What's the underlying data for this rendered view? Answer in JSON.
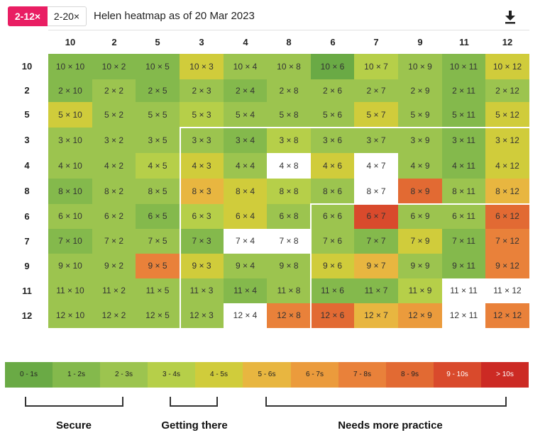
{
  "tabs": [
    {
      "label": "2-12×",
      "active": true
    },
    {
      "label": "2-20×",
      "active": false
    }
  ],
  "title": "Helen heatmap as of 20 Mar 2023",
  "download_icon": "download-icon",
  "colors": {
    "0-1s": "#6aaa45",
    "1-2s": "#84b94c",
    "2-3s": "#9cc44f",
    "3-4s": "#b6cf49",
    "4-5s": "#d0cc3b",
    "5-6s": "#e8b640",
    "6-7s": "#eb9b3c",
    "7-8s": "#e9813a",
    "8-9s": "#e26a33",
    "9-10s": "#d94a2c",
    ">10s": "#cc2a24",
    "untested": "#ffffff",
    "accent": "#e91e63"
  },
  "heatmap": {
    "columns": [
      "10",
      "2",
      "5",
      "3",
      "4",
      "8",
      "6",
      "7",
      "9",
      "11",
      "12"
    ],
    "rows": [
      {
        "label": "10",
        "cells": [
          {
            "text": "10 × 10",
            "band": "1-2s"
          },
          {
            "text": "10 × 2",
            "band": "1-2s"
          },
          {
            "text": "10 × 5",
            "band": "1-2s"
          },
          {
            "text": "10 × 3",
            "band": "4-5s"
          },
          {
            "text": "10 × 4",
            "band": "2-3s"
          },
          {
            "text": "10 × 8",
            "band": "2-3s"
          },
          {
            "text": "10 × 6",
            "band": "0-1s"
          },
          {
            "text": "10 × 7",
            "band": "3-4s"
          },
          {
            "text": "10 × 9",
            "band": "2-3s"
          },
          {
            "text": "10 × 11",
            "band": "1-2s"
          },
          {
            "text": "10 × 12",
            "band": "4-5s"
          }
        ]
      },
      {
        "label": "2",
        "cells": [
          {
            "text": "2 × 10",
            "band": "1-2s"
          },
          {
            "text": "2 × 2",
            "band": "2-3s"
          },
          {
            "text": "2 × 5",
            "band": "1-2s"
          },
          {
            "text": "2 × 3",
            "band": "2-3s"
          },
          {
            "text": "2 × 4",
            "band": "1-2s"
          },
          {
            "text": "2 × 8",
            "band": "2-3s"
          },
          {
            "text": "2 × 6",
            "band": "2-3s"
          },
          {
            "text": "2 × 7",
            "band": "2-3s"
          },
          {
            "text": "2 × 9",
            "band": "2-3s"
          },
          {
            "text": "2 × 11",
            "band": "1-2s"
          },
          {
            "text": "2 × 12",
            "band": "2-3s"
          }
        ]
      },
      {
        "label": "5",
        "cells": [
          {
            "text": "5 × 10",
            "band": "4-5s"
          },
          {
            "text": "5 × 2",
            "band": "2-3s"
          },
          {
            "text": "5 × 5",
            "band": "2-3s"
          },
          {
            "text": "5 × 3",
            "band": "3-4s"
          },
          {
            "text": "5 × 4",
            "band": "2-3s"
          },
          {
            "text": "5 × 8",
            "band": "2-3s"
          },
          {
            "text": "5 × 6",
            "band": "2-3s"
          },
          {
            "text": "5 × 7",
            "band": "4-5s"
          },
          {
            "text": "5 × 9",
            "band": "2-3s"
          },
          {
            "text": "5 × 11",
            "band": "1-2s"
          },
          {
            "text": "5 × 12",
            "band": "4-5s"
          }
        ]
      },
      {
        "label": "3",
        "cells": [
          {
            "text": "3 × 10",
            "band": "2-3s"
          },
          {
            "text": "3 × 2",
            "band": "2-3s"
          },
          {
            "text": "3 × 5",
            "band": "2-3s"
          },
          {
            "text": "3 × 3",
            "band": "2-3s"
          },
          {
            "text": "3 × 4",
            "band": "1-2s"
          },
          {
            "text": "3 × 8",
            "band": "3-4s"
          },
          {
            "text": "3 × 6",
            "band": "2-3s"
          },
          {
            "text": "3 × 7",
            "band": "2-3s"
          },
          {
            "text": "3 × 9",
            "band": "2-3s"
          },
          {
            "text": "3 × 11",
            "band": "1-2s"
          },
          {
            "text": "3 × 12",
            "band": "4-5s"
          }
        ]
      },
      {
        "label": "4",
        "cells": [
          {
            "text": "4 × 10",
            "band": "2-3s"
          },
          {
            "text": "4 × 2",
            "band": "2-3s"
          },
          {
            "text": "4 × 5",
            "band": "3-4s"
          },
          {
            "text": "4 × 3",
            "band": "4-5s"
          },
          {
            "text": "4 × 4",
            "band": "2-3s"
          },
          {
            "text": "4 × 8",
            "band": "untested"
          },
          {
            "text": "4 × 6",
            "band": "4-5s"
          },
          {
            "text": "4 × 7",
            "band": "untested"
          },
          {
            "text": "4 × 9",
            "band": "2-3s"
          },
          {
            "text": "4 × 11",
            "band": "1-2s"
          },
          {
            "text": "4 × 12",
            "band": "4-5s"
          }
        ]
      },
      {
        "label": "8",
        "cells": [
          {
            "text": "8 × 10",
            "band": "1-2s"
          },
          {
            "text": "8 × 2",
            "band": "2-3s"
          },
          {
            "text": "8 × 5",
            "band": "2-3s"
          },
          {
            "text": "8 × 3",
            "band": "5-6s"
          },
          {
            "text": "8 × 4",
            "band": "4-5s"
          },
          {
            "text": "8 × 8",
            "band": "3-4s"
          },
          {
            "text": "8 × 6",
            "band": "2-3s"
          },
          {
            "text": "8 × 7",
            "band": "untested"
          },
          {
            "text": "8 × 9",
            "band": "8-9s"
          },
          {
            "text": "8 × 11",
            "band": "2-3s"
          },
          {
            "text": "8 × 12",
            "band": "5-6s"
          }
        ]
      },
      {
        "label": "6",
        "cells": [
          {
            "text": "6 × 10",
            "band": "2-3s"
          },
          {
            "text": "6 × 2",
            "band": "2-3s"
          },
          {
            "text": "6 × 5",
            "band": "1-2s"
          },
          {
            "text": "6 × 3",
            "band": "3-4s"
          },
          {
            "text": "6 × 4",
            "band": "4-5s"
          },
          {
            "text": "6 × 8",
            "band": "2-3s"
          },
          {
            "text": "6 × 6",
            "band": "2-3s"
          },
          {
            "text": "6 × 7",
            "band": "9-10s"
          },
          {
            "text": "6 × 9",
            "band": "2-3s"
          },
          {
            "text": "6 × 11",
            "band": "2-3s"
          },
          {
            "text": "6 × 12",
            "band": "8-9s"
          }
        ]
      },
      {
        "label": "7",
        "cells": [
          {
            "text": "7 × 10",
            "band": "1-2s"
          },
          {
            "text": "7 × 2",
            "band": "2-3s"
          },
          {
            "text": "7 × 5",
            "band": "2-3s"
          },
          {
            "text": "7 × 3",
            "band": "1-2s"
          },
          {
            "text": "7 × 4",
            "band": "untested"
          },
          {
            "text": "7 × 8",
            "band": "untested"
          },
          {
            "text": "7 × 6",
            "band": "2-3s"
          },
          {
            "text": "7 × 7",
            "band": "1-2s"
          },
          {
            "text": "7 × 9",
            "band": "4-5s"
          },
          {
            "text": "7 × 11",
            "band": "1-2s"
          },
          {
            "text": "7 × 12",
            "band": "7-8s"
          }
        ]
      },
      {
        "label": "9",
        "cells": [
          {
            "text": "9 × 10",
            "band": "2-3s"
          },
          {
            "text": "9 × 2",
            "band": "2-3s"
          },
          {
            "text": "9 × 5",
            "band": "7-8s"
          },
          {
            "text": "9 × 3",
            "band": "4-5s"
          },
          {
            "text": "9 × 4",
            "band": "2-3s"
          },
          {
            "text": "9 × 8",
            "band": "2-3s"
          },
          {
            "text": "9 × 6",
            "band": "4-5s"
          },
          {
            "text": "9 × 7",
            "band": "5-6s"
          },
          {
            "text": "9 × 9",
            "band": "2-3s"
          },
          {
            "text": "9 × 11",
            "band": "1-2s"
          },
          {
            "text": "9 × 12",
            "band": "7-8s"
          }
        ]
      },
      {
        "label": "11",
        "cells": [
          {
            "text": "11 × 10",
            "band": "2-3s"
          },
          {
            "text": "11 × 2",
            "band": "2-3s"
          },
          {
            "text": "11 × 5",
            "band": "2-3s"
          },
          {
            "text": "11 × 3",
            "band": "2-3s"
          },
          {
            "text": "11 × 4",
            "band": "1-2s"
          },
          {
            "text": "11 × 8",
            "band": "2-3s"
          },
          {
            "text": "11 × 6",
            "band": "1-2s"
          },
          {
            "text": "11 × 7",
            "band": "1-2s"
          },
          {
            "text": "11 × 9",
            "band": "3-4s"
          },
          {
            "text": "11 × 11",
            "band": "untested"
          },
          {
            "text": "11 × 12",
            "band": "untested"
          }
        ]
      },
      {
        "label": "12",
        "cells": [
          {
            "text": "12 × 10",
            "band": "2-3s"
          },
          {
            "text": "12 × 2",
            "band": "2-3s"
          },
          {
            "text": "12 × 5",
            "band": "2-3s"
          },
          {
            "text": "12 × 3",
            "band": "2-3s"
          },
          {
            "text": "12 × 4",
            "band": "untested"
          },
          {
            "text": "12 × 8",
            "band": "7-8s"
          },
          {
            "text": "12 × 6",
            "band": "8-9s"
          },
          {
            "text": "12 × 7",
            "band": "5-6s"
          },
          {
            "text": "12 × 9",
            "band": "6-7s"
          },
          {
            "text": "12 × 11",
            "band": "untested"
          },
          {
            "text": "12 × 12",
            "band": "7-8s"
          }
        ]
      }
    ]
  },
  "legend": [
    {
      "label": "0 - 1s",
      "band": "0-1s"
    },
    {
      "label": "1 - 2s",
      "band": "1-2s"
    },
    {
      "label": "2 - 3s",
      "band": "2-3s"
    },
    {
      "label": "3 - 4s",
      "band": "3-4s"
    },
    {
      "label": "4 - 5s",
      "band": "4-5s"
    },
    {
      "label": "5 - 6s",
      "band": "5-6s"
    },
    {
      "label": "6 - 7s",
      "band": "6-7s"
    },
    {
      "label": "7 - 8s",
      "band": "7-8s"
    },
    {
      "label": "8 - 9s",
      "band": "8-9s"
    },
    {
      "label": "9 - 10s",
      "band": "9-10s"
    },
    {
      "label": "> 10s",
      "band": ">10s"
    }
  ],
  "groups": [
    {
      "label": "Secure"
    },
    {
      "label": "Getting there"
    },
    {
      "label": "Needs more practice"
    }
  ]
}
